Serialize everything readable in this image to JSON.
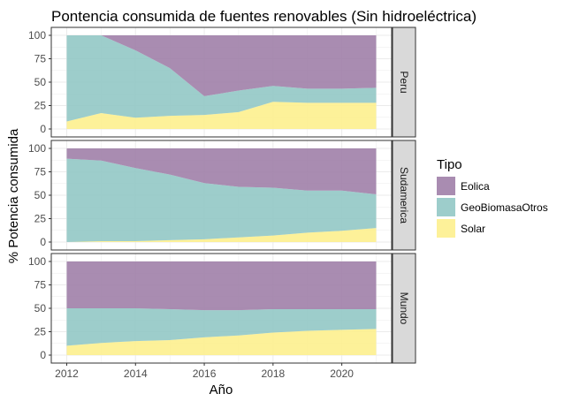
{
  "title": "Pontencia consumida de fuentes renovables (Sin hidroeléctrica)",
  "colors": {
    "Eolica": "#a07fa8",
    "GeoBiomasaOtros": "#92c8c5",
    "Solar": "#fdf08e",
    "panel_background": "#ffffff",
    "grid": "#ebebeb",
    "strip_background": "#d9d9d9",
    "border": "#333333"
  },
  "chart_data": {
    "type": "area",
    "stacked": true,
    "percent": true,
    "title": "Pontencia consumida de fuentes renovables (Sin hidroeléctrica)",
    "xlabel": "Año",
    "ylabel": "% Potencia consumida",
    "x": [
      2012,
      2013,
      2014,
      2015,
      2016,
      2017,
      2018,
      2019,
      2020,
      2021
    ],
    "xticks": [
      2012,
      2014,
      2016,
      2018,
      2020
    ],
    "yticks": [
      0,
      25,
      50,
      75,
      100
    ],
    "ylim": [
      0,
      100
    ],
    "grid": true,
    "legend": {
      "title": "Tipo",
      "position": "right",
      "entries": [
        "Eolica",
        "GeoBiomasaOtros",
        "Solar"
      ]
    },
    "panels": [
      {
        "label": "Peru",
        "series": [
          {
            "name": "Solar",
            "values": [
              8,
              17,
              12,
              14,
              15,
              18,
              29,
              28,
              28,
              28
            ]
          },
          {
            "name": "GeoBiomasaOtros",
            "values": [
              92,
              83,
              72,
              51,
              20,
              23,
              17,
              15,
              15,
              16
            ]
          },
          {
            "name": "Eolica",
            "values": [
              0,
              0,
              16,
              35,
              65,
              59,
              54,
              57,
              57,
              56
            ]
          }
        ]
      },
      {
        "label": "Sudamerica",
        "series": [
          {
            "name": "Solar",
            "values": [
              0,
              1,
              1,
              2,
              3,
              5,
              7,
              10,
              12,
              15
            ]
          },
          {
            "name": "GeoBiomasaOtros",
            "values": [
              89,
              86,
              78,
              70,
              60,
              54,
              51,
              45,
              43,
              36
            ]
          },
          {
            "name": "Eolica",
            "values": [
              11,
              13,
              21,
              28,
              37,
              41,
              42,
              45,
              45,
              49
            ]
          }
        ]
      },
      {
        "label": "Mundo",
        "series": [
          {
            "name": "Solar",
            "values": [
              10,
              13,
              15,
              16,
              19,
              21,
              24,
              26,
              27,
              28
            ]
          },
          {
            "name": "GeoBiomasaOtros",
            "values": [
              40,
              37,
              35,
              33,
              29,
              27,
              25,
              23,
              22,
              21
            ]
          },
          {
            "name": "Eolica",
            "values": [
              50,
              50,
              50,
              51,
              52,
              52,
              51,
              51,
              51,
              51
            ]
          }
        ]
      }
    ]
  }
}
